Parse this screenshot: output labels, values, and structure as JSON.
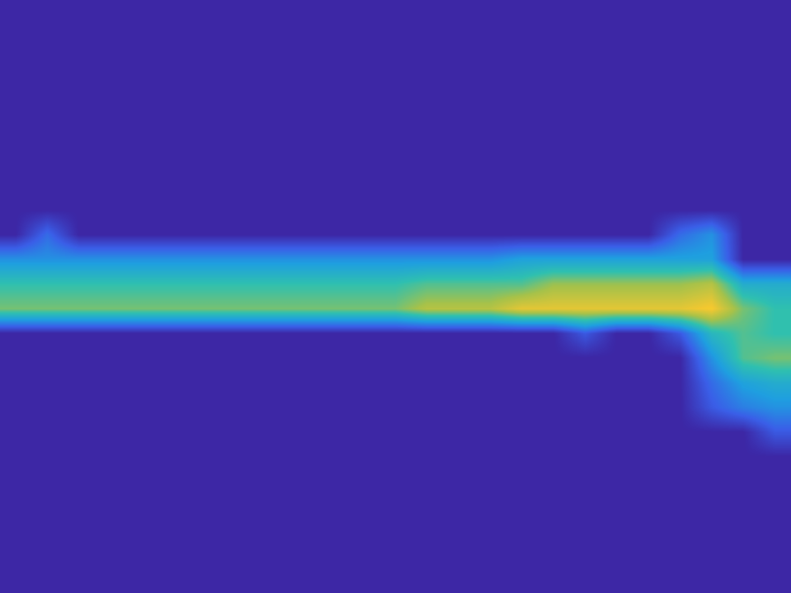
{
  "chart_data": {
    "type": "heatmap",
    "tick_labels": false,
    "color_range": [
      0,
      1
    ],
    "cells": [
      [
        0,
        0,
        0,
        0,
        0,
        0,
        0,
        0,
        0,
        0,
        0,
        0,
        0,
        0,
        0,
        0,
        0,
        0,
        0,
        0,
        0,
        0,
        0,
        0,
        0
      ],
      [
        0,
        0,
        0,
        0,
        0,
        0,
        0,
        0,
        0,
        0,
        0,
        0,
        0,
        0,
        0,
        0,
        0,
        0,
        0,
        0,
        0,
        0,
        0,
        0,
        0
      ],
      [
        0,
        0,
        0,
        0,
        0,
        0,
        0,
        0,
        0,
        0,
        0,
        0,
        0,
        0,
        0,
        0,
        0,
        0,
        0,
        0,
        0,
        0,
        0,
        0,
        0
      ],
      [
        0,
        0,
        0,
        0,
        0,
        0,
        0,
        0,
        0,
        0,
        0,
        0,
        0,
        0,
        0,
        0,
        0,
        0,
        0,
        0,
        0,
        0,
        0,
        0,
        0
      ],
      [
        0,
        0,
        0,
        0,
        0,
        0,
        0,
        0,
        0,
        0,
        0,
        0,
        0,
        0,
        0,
        0,
        0,
        0,
        0,
        0,
        0,
        0,
        0,
        0,
        0
      ],
      [
        0,
        0,
        0,
        0,
        0,
        0,
        0,
        0,
        0,
        0,
        0,
        0,
        0,
        0,
        0,
        0,
        0,
        0,
        0,
        0,
        0,
        0,
        0,
        0,
        0
      ],
      [
        0,
        0,
        0,
        0,
        0,
        0,
        0,
        0,
        0,
        0,
        0,
        0,
        0,
        0,
        0,
        0,
        0,
        0,
        0,
        0,
        0,
        0,
        0,
        0,
        0
      ],
      [
        0,
        0,
        0,
        0,
        0,
        0,
        0,
        0,
        0,
        0,
        0,
        0,
        0,
        0,
        0,
        0,
        0,
        0,
        0,
        0,
        0,
        0,
        0,
        0,
        0
      ],
      [
        0,
        0,
        0,
        0,
        0,
        0,
        0,
        0,
        0,
        0,
        0,
        0,
        0,
        0,
        0,
        0,
        0,
        0,
        0,
        0,
        0,
        0,
        0,
        0,
        0
      ],
      [
        0,
        0.2,
        0,
        0,
        0,
        0,
        0,
        0,
        0,
        0,
        0,
        0,
        0,
        0,
        0,
        0,
        0,
        0,
        0,
        0,
        0,
        0.2,
        0.3,
        0,
        0
      ],
      [
        0.3,
        0.3,
        0.3,
        0.3,
        0.3,
        0.3,
        0.3,
        0.3,
        0.3,
        0.3,
        0.3,
        0.3,
        0.3,
        0.3,
        0.3,
        0.3,
        0.35,
        0.35,
        0.35,
        0.35,
        0.35,
        0.35,
        0.35,
        0,
        0
      ],
      [
        0.5,
        0.5,
        0.5,
        0.5,
        0.5,
        0.5,
        0.5,
        0.5,
        0.5,
        0.5,
        0.5,
        0.5,
        0.5,
        0.55,
        0.55,
        0.55,
        0.55,
        0.65,
        0.65,
        0.65,
        0.65,
        0.65,
        0.7,
        0.4,
        0.4
      ],
      [
        0.6,
        0.6,
        0.6,
        0.6,
        0.6,
        0.6,
        0.6,
        0.6,
        0.6,
        0.6,
        0.6,
        0.6,
        0.6,
        0.7,
        0.7,
        0.7,
        0.8,
        0.8,
        0.8,
        0.8,
        0.8,
        0.8,
        0.85,
        0.6,
        0.5
      ],
      [
        0,
        0,
        0,
        0,
        0,
        0,
        0,
        0,
        0,
        0,
        0,
        0,
        0,
        0,
        0,
        0,
        0,
        0,
        0.15,
        0,
        0,
        0.15,
        0.45,
        0.55,
        0.5
      ],
      [
        0,
        0,
        0,
        0,
        0,
        0,
        0,
        0,
        0,
        0,
        0,
        0,
        0,
        0,
        0,
        0,
        0,
        0,
        0,
        0,
        0,
        0,
        0.3,
        0.55,
        0.6
      ],
      [
        0,
        0,
        0,
        0,
        0,
        0,
        0,
        0,
        0,
        0,
        0,
        0,
        0,
        0,
        0,
        0,
        0,
        0,
        0,
        0,
        0,
        0,
        0.2,
        0.35,
        0.4
      ],
      [
        0,
        0,
        0,
        0,
        0,
        0,
        0,
        0,
        0,
        0,
        0,
        0,
        0,
        0,
        0,
        0,
        0,
        0,
        0,
        0,
        0,
        0,
        0.15,
        0.25,
        0.3
      ],
      [
        0,
        0,
        0,
        0,
        0,
        0,
        0,
        0,
        0,
        0,
        0,
        0,
        0,
        0,
        0,
        0,
        0,
        0,
        0,
        0,
        0,
        0,
        0,
        0,
        0.15
      ],
      [
        0,
        0,
        0,
        0,
        0,
        0,
        0,
        0,
        0,
        0,
        0,
        0,
        0,
        0,
        0,
        0,
        0,
        0,
        0,
        0,
        0,
        0,
        0,
        0,
        0
      ],
      [
        0,
        0,
        0,
        0,
        0,
        0,
        0,
        0,
        0,
        0,
        0,
        0,
        0,
        0,
        0,
        0,
        0,
        0,
        0,
        0,
        0,
        0,
        0,
        0,
        0
      ],
      [
        0,
        0,
        0,
        0,
        0,
        0,
        0,
        0,
        0,
        0,
        0,
        0,
        0,
        0,
        0,
        0,
        0,
        0,
        0,
        0,
        0,
        0,
        0,
        0,
        0
      ],
      [
        0,
        0,
        0,
        0,
        0,
        0,
        0,
        0,
        0,
        0,
        0,
        0,
        0,
        0,
        0,
        0,
        0,
        0,
        0,
        0,
        0,
        0,
        0,
        0,
        0
      ],
      [
        0,
        0,
        0,
        0,
        0,
        0,
        0,
        0,
        0,
        0,
        0,
        0,
        0,
        0,
        0,
        0,
        0,
        0,
        0,
        0,
        0,
        0,
        0,
        0,
        0
      ],
      [
        0,
        0,
        0,
        0,
        0,
        0,
        0,
        0,
        0,
        0,
        0,
        0,
        0,
        0,
        0,
        0,
        0,
        0,
        0,
        0,
        0,
        0,
        0,
        0,
        0
      ]
    ]
  }
}
